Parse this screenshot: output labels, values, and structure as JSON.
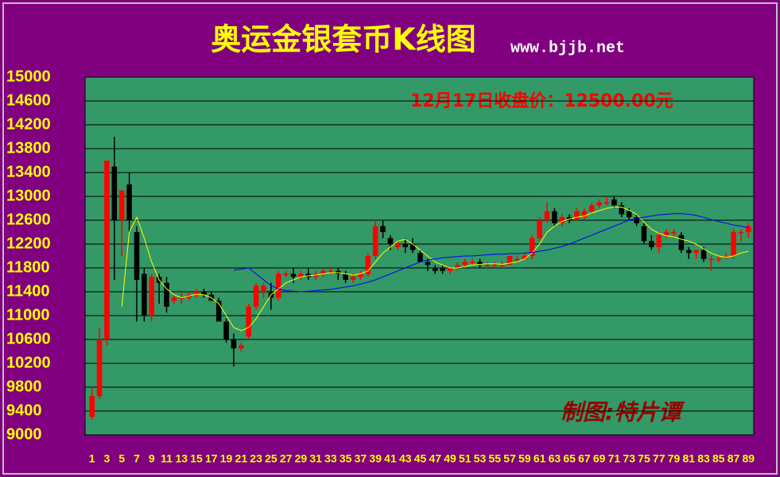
{
  "chart_data": {
    "type": "candlestick",
    "title": "奥运金银套币K线图",
    "subtitle": "www.bjjb.net",
    "annotation": "12月17日收盘价：12500.00元",
    "credit": "制图:特片谭",
    "up_color": "#ff0000",
    "down_color": "#000000",
    "grid": true,
    "ylim": [
      9000,
      15000
    ],
    "yticks": [
      9000,
      9400,
      9800,
      10200,
      10600,
      11000,
      11400,
      11800,
      12200,
      12600,
      13000,
      13400,
      13800,
      14200,
      14600,
      15000
    ],
    "categories": [
      "1",
      null,
      "3",
      null,
      "5",
      null,
      "7",
      null,
      "9",
      null,
      "11",
      null,
      "13",
      null,
      "15",
      null,
      "17",
      null,
      "19",
      null,
      "21",
      null,
      "23",
      null,
      "25",
      null,
      "27",
      null,
      "29",
      null,
      "31",
      null,
      "33",
      null,
      "35",
      null,
      "37",
      null,
      "39",
      null,
      "41",
      null,
      "43",
      null,
      "45",
      null,
      "47",
      null,
      "49",
      null,
      "51",
      null,
      "53",
      null,
      "55",
      null,
      "57",
      null,
      "59",
      null,
      "61",
      null,
      "63",
      null,
      "65",
      null,
      "67",
      null,
      "69",
      null,
      "71",
      null,
      "73",
      null,
      "75",
      null,
      "77",
      null,
      "79",
      null,
      "81",
      null,
      "83",
      null,
      "85",
      null,
      "87",
      null,
      "89"
    ],
    "open": [
      9300,
      9650,
      10600,
      13500,
      12600,
      13200,
      12400,
      11700,
      11000,
      11650,
      11550,
      11250,
      11300,
      11300,
      11350,
      11400,
      11350,
      11250,
      10900,
      10600,
      10450,
      10650,
      11150,
      11400,
      11400,
      11300,
      11700,
      11700,
      11650,
      11700,
      11650,
      11700,
      11750,
      11750,
      11700,
      11600,
      11650,
      11700,
      12000,
      12500,
      12300,
      12150,
      12200,
      12200,
      12050,
      11900,
      11800,
      11800,
      11750,
      11800,
      11850,
      11900,
      11900,
      11850,
      11850,
      11850,
      11850,
      11950,
      11950,
      12000,
      12300,
      12600,
      12750,
      12550,
      12650,
      12600,
      12650,
      12750,
      12850,
      12900,
      12950,
      12850,
      12750,
      12650,
      12500,
      12250,
      12150,
      12350,
      12400,
      12350,
      12100,
      12050,
      12100,
      11950,
      11950,
      12000,
      12000,
      12400,
      12400
    ],
    "high": [
      9800,
      10800,
      13600,
      14000,
      13100,
      13400,
      12500,
      11800,
      11700,
      11700,
      11650,
      11350,
      11400,
      11400,
      11450,
      11450,
      11400,
      11300,
      10950,
      10700,
      10550,
      11200,
      11550,
      11550,
      11550,
      11750,
      11750,
      11800,
      11750,
      11800,
      11750,
      11800,
      11800,
      11800,
      11750,
      11700,
      11750,
      12050,
      12600,
      12600,
      12350,
      12250,
      12300,
      12300,
      12100,
      11950,
      11850,
      11850,
      11800,
      11900,
      11950,
      11950,
      11950,
      11900,
      11900,
      11900,
      12000,
      12000,
      12050,
      12350,
      12650,
      12900,
      12800,
      12700,
      12700,
      12800,
      12800,
      12900,
      12950,
      13000,
      13000,
      12900,
      12800,
      12700,
      12550,
      12350,
      12400,
      12450,
      12450,
      12400,
      12150,
      12100,
      12150,
      12000,
      12000,
      12050,
      12450,
      12450,
      12550
    ],
    "low": [
      9250,
      9600,
      10500,
      11600,
      12000,
      12400,
      10900,
      10900,
      10900,
      11200,
      11050,
      11200,
      11200,
      11250,
      11300,
      11300,
      11250,
      10900,
      10550,
      10150,
      10400,
      10600,
      11100,
      11300,
      11100,
      11250,
      11650,
      11550,
      11600,
      11600,
      11600,
      11650,
      11700,
      11600,
      11550,
      11550,
      11600,
      11650,
      11950,
      12300,
      12100,
      12100,
      12050,
      12050,
      11950,
      11750,
      11700,
      11700,
      11700,
      11750,
      11800,
      11850,
      11800,
      11800,
      11800,
      11800,
      11850,
      11900,
      11950,
      11950,
      12250,
      12550,
      12500,
      12500,
      12550,
      12600,
      12600,
      12700,
      12800,
      12850,
      12800,
      12650,
      12600,
      12500,
      12200,
      12100,
      12050,
      12300,
      12300,
      12050,
      11950,
      11950,
      11900,
      11750,
      11900,
      11950,
      11950,
      12250,
      12300
    ],
    "close": [
      9650,
      10600,
      13600,
      12600,
      13100,
      12600,
      11600,
      11000,
      11650,
      11550,
      11150,
      11300,
      11300,
      11350,
      11400,
      11350,
      11250,
      10900,
      10600,
      10450,
      10500,
      11150,
      11500,
      11500,
      11300,
      11700,
      11700,
      11650,
      11700,
      11650,
      11700,
      11750,
      11750,
      11700,
      11600,
      11650,
      11700,
      12000,
      12500,
      12400,
      12200,
      12200,
      12150,
      12100,
      11900,
      11850,
      11750,
      11750,
      11800,
      11850,
      11900,
      11900,
      11850,
      11850,
      11850,
      11850,
      12000,
      11950,
      12000,
      12300,
      12600,
      12750,
      12550,
      12650,
      12600,
      12750,
      12750,
      12850,
      12900,
      12900,
      12850,
      12700,
      12650,
      12550,
      12250,
      12150,
      12350,
      12400,
      12400,
      12100,
      12050,
      12100,
      11950,
      11950,
      11950,
      12000,
      12400,
      12400,
      12500
    ],
    "lines": [
      {
        "color": "#ffff00",
        "values": [
          null,
          null,
          null,
          null,
          11150,
          12400,
          12650,
          12300,
          11900,
          11600,
          11450,
          11350,
          11300,
          11330,
          11360,
          11350,
          11300,
          11200,
          11000,
          10800,
          10750,
          10800,
          10950,
          11150,
          11350,
          11450,
          11550,
          11600,
          11650,
          11670,
          11680,
          11700,
          11720,
          11720,
          11700,
          11680,
          11700,
          11750,
          11900,
          12050,
          12150,
          12250,
          12280,
          12200,
          12100,
          12000,
          11900,
          11850,
          11800,
          11800,
          11820,
          11850,
          11860,
          11870,
          11870,
          11860,
          11880,
          11900,
          11950,
          12050,
          12200,
          12400,
          12500,
          12580,
          12620,
          12650,
          12670,
          12720,
          12760,
          12800,
          12820,
          12820,
          12770,
          12700,
          12570,
          12450,
          12380,
          12340,
          12320,
          12280,
          12250,
          12200,
          12120,
          12050,
          12000,
          11980,
          12000,
          12050,
          12080
        ]
      },
      {
        "color": "#0000ff",
        "values": [
          null,
          null,
          null,
          null,
          null,
          null,
          null,
          null,
          null,
          null,
          null,
          null,
          null,
          null,
          null,
          null,
          null,
          null,
          null,
          11760,
          11780,
          11800,
          11700,
          11600,
          11500,
          11450,
          11420,
          11410,
          11400,
          11410,
          11420,
          11430,
          11440,
          11460,
          11480,
          11500,
          11530,
          11560,
          11600,
          11650,
          11700,
          11750,
          11800,
          11850,
          11900,
          11930,
          11950,
          11970,
          11980,
          11990,
          12000,
          12000,
          12010,
          12020,
          12030,
          12030,
          12040,
          12040,
          12050,
          12060,
          12080,
          12100,
          12130,
          12160,
          12200,
          12250,
          12300,
          12350,
          12400,
          12450,
          12500,
          12550,
          12600,
          12630,
          12650,
          12670,
          12690,
          12700,
          12710,
          12710,
          12700,
          12680,
          12650,
          12610,
          12580,
          12550,
          12520,
          12500,
          12480
        ]
      }
    ]
  }
}
